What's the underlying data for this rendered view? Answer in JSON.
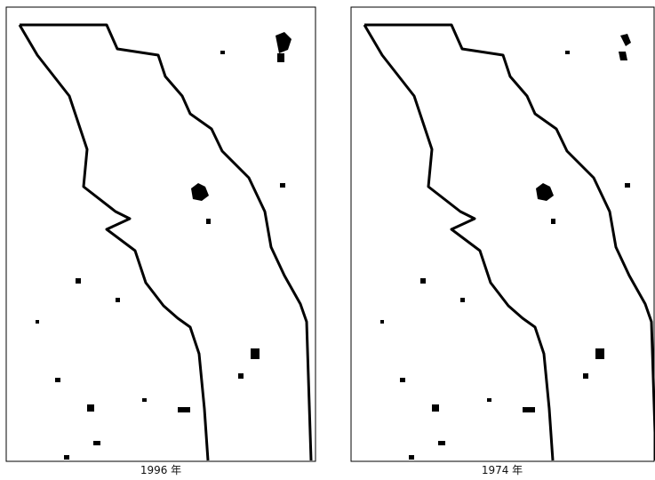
{
  "panels": [
    {
      "label": "1996 年"
    },
    {
      "label": "1974 年"
    }
  ]
}
